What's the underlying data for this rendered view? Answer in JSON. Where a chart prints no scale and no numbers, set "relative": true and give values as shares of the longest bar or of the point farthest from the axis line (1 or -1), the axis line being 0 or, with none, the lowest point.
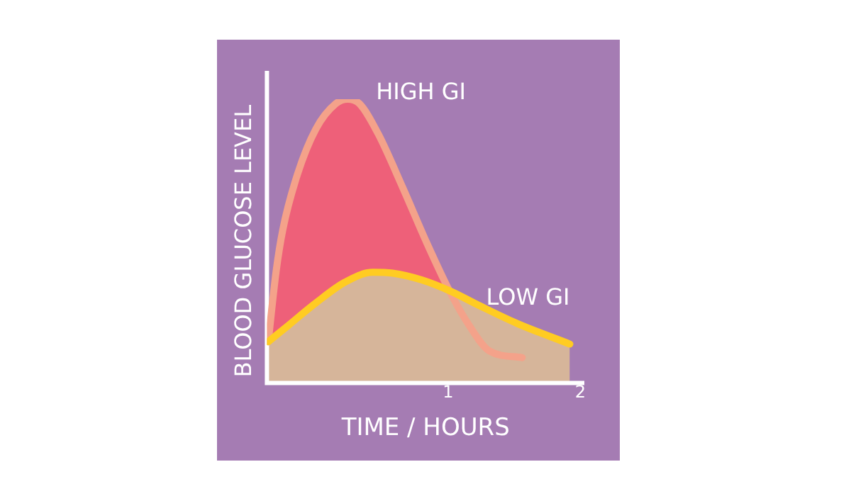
{
  "chart_data": {
    "type": "area",
    "relative": true,
    "xlabel": "TIME / HOURS",
    "ylabel": "BLOOD GLUCOSE LEVEL",
    "xlim": [
      -0.37,
      2.03
    ],
    "xticks": [
      1,
      2
    ],
    "grid": false,
    "legend": false,
    "marker": "none",
    "line_style": "solid",
    "series": [
      {
        "name": "HIGH GI",
        "color": "#f4a28a",
        "x": [
          -0.36,
          -0.3,
          -0.25,
          -0.14,
          0,
          0.15,
          0.24,
          0.33,
          0.47,
          0.66,
          0.84,
          1.02,
          1.16,
          1.31,
          1.56
        ],
        "values": [
          0.145,
          0.395,
          0.54,
          0.734,
          0.895,
          0.984,
          1,
          0.984,
          0.879,
          0.685,
          0.492,
          0.315,
          0.202,
          0.113,
          0.089
        ]
      },
      {
        "name": "LOW GI",
        "color": "#ffcc22",
        "x": [
          -0.36,
          -0.21,
          0,
          0.22,
          0.43,
          0.58,
          0.8,
          1.02,
          1.23,
          1.52,
          1.92
        ],
        "values": [
          0.145,
          0.202,
          0.282,
          0.355,
          0.39,
          0.387,
          0.363,
          0.323,
          0.274,
          0.21,
          0.137
        ]
      }
    ]
  }
}
